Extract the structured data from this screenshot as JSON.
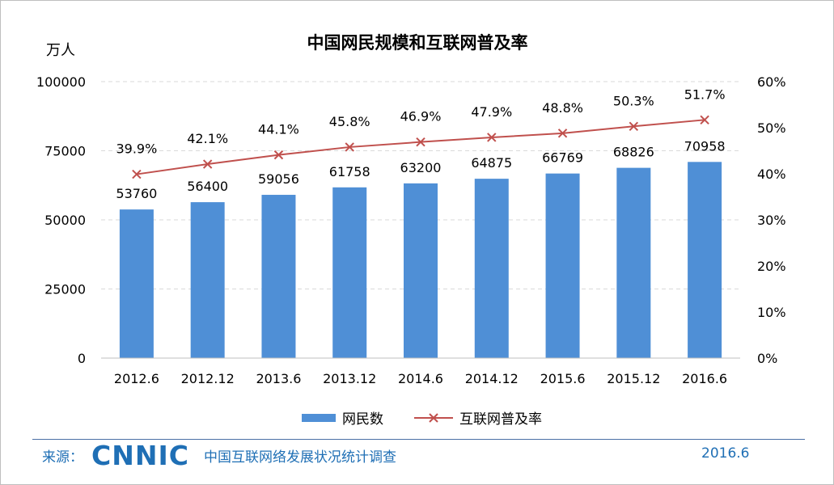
{
  "chart_data": {
    "type": "bar",
    "title": "中国网民规模和互联网普及率",
    "y_unit_label": "万人",
    "categories": [
      "2012.6",
      "2012.12",
      "2013.6",
      "2013.12",
      "2014.6",
      "2014.12",
      "2015.6",
      "2015.12",
      "2016.6"
    ],
    "series": [
      {
        "name": "网民数",
        "type": "bar",
        "axis": "left",
        "color": "#4f8fd6",
        "values": [
          53760,
          56400,
          59056,
          61758,
          63200,
          64875,
          66769,
          68826,
          70958
        ],
        "labels": [
          "53760",
          "56400",
          "59056",
          "61758",
          "63200",
          "64875",
          "66769",
          "68826",
          "70958"
        ]
      },
      {
        "name": "互联网普及率",
        "type": "line",
        "axis": "right",
        "color": "#c0504d",
        "marker": "x",
        "values": [
          39.9,
          42.1,
          44.1,
          45.8,
          46.9,
          47.9,
          48.8,
          50.3,
          51.7
        ],
        "labels": [
          "39.9%",
          "42.1%",
          "44.1%",
          "45.8%",
          "46.9%",
          "47.9%",
          "48.8%",
          "50.3%",
          "51.7%"
        ]
      }
    ],
    "y_left": {
      "min": 0,
      "max": 100000,
      "ticks": [
        "0",
        "25000",
        "50000",
        "75000",
        "100000"
      ]
    },
    "y_right": {
      "min": 0,
      "max": 60,
      "ticks": [
        "0%",
        "10%",
        "20%",
        "30%",
        "40%",
        "50%",
        "60%"
      ]
    },
    "grid": true,
    "legend": {
      "position": "bottom",
      "items": [
        "网民数",
        "互联网普及率"
      ]
    }
  },
  "footer": {
    "source_label": "来源：",
    "logo_text": "CNNIC",
    "org_name": "中国互联网络发展状况统计调查",
    "date": "2016.6"
  },
  "colors": {
    "bar": "#4f8fd6",
    "line": "#c0504d",
    "brand": "#1f6fb5",
    "grid": "#d9d9d9"
  }
}
